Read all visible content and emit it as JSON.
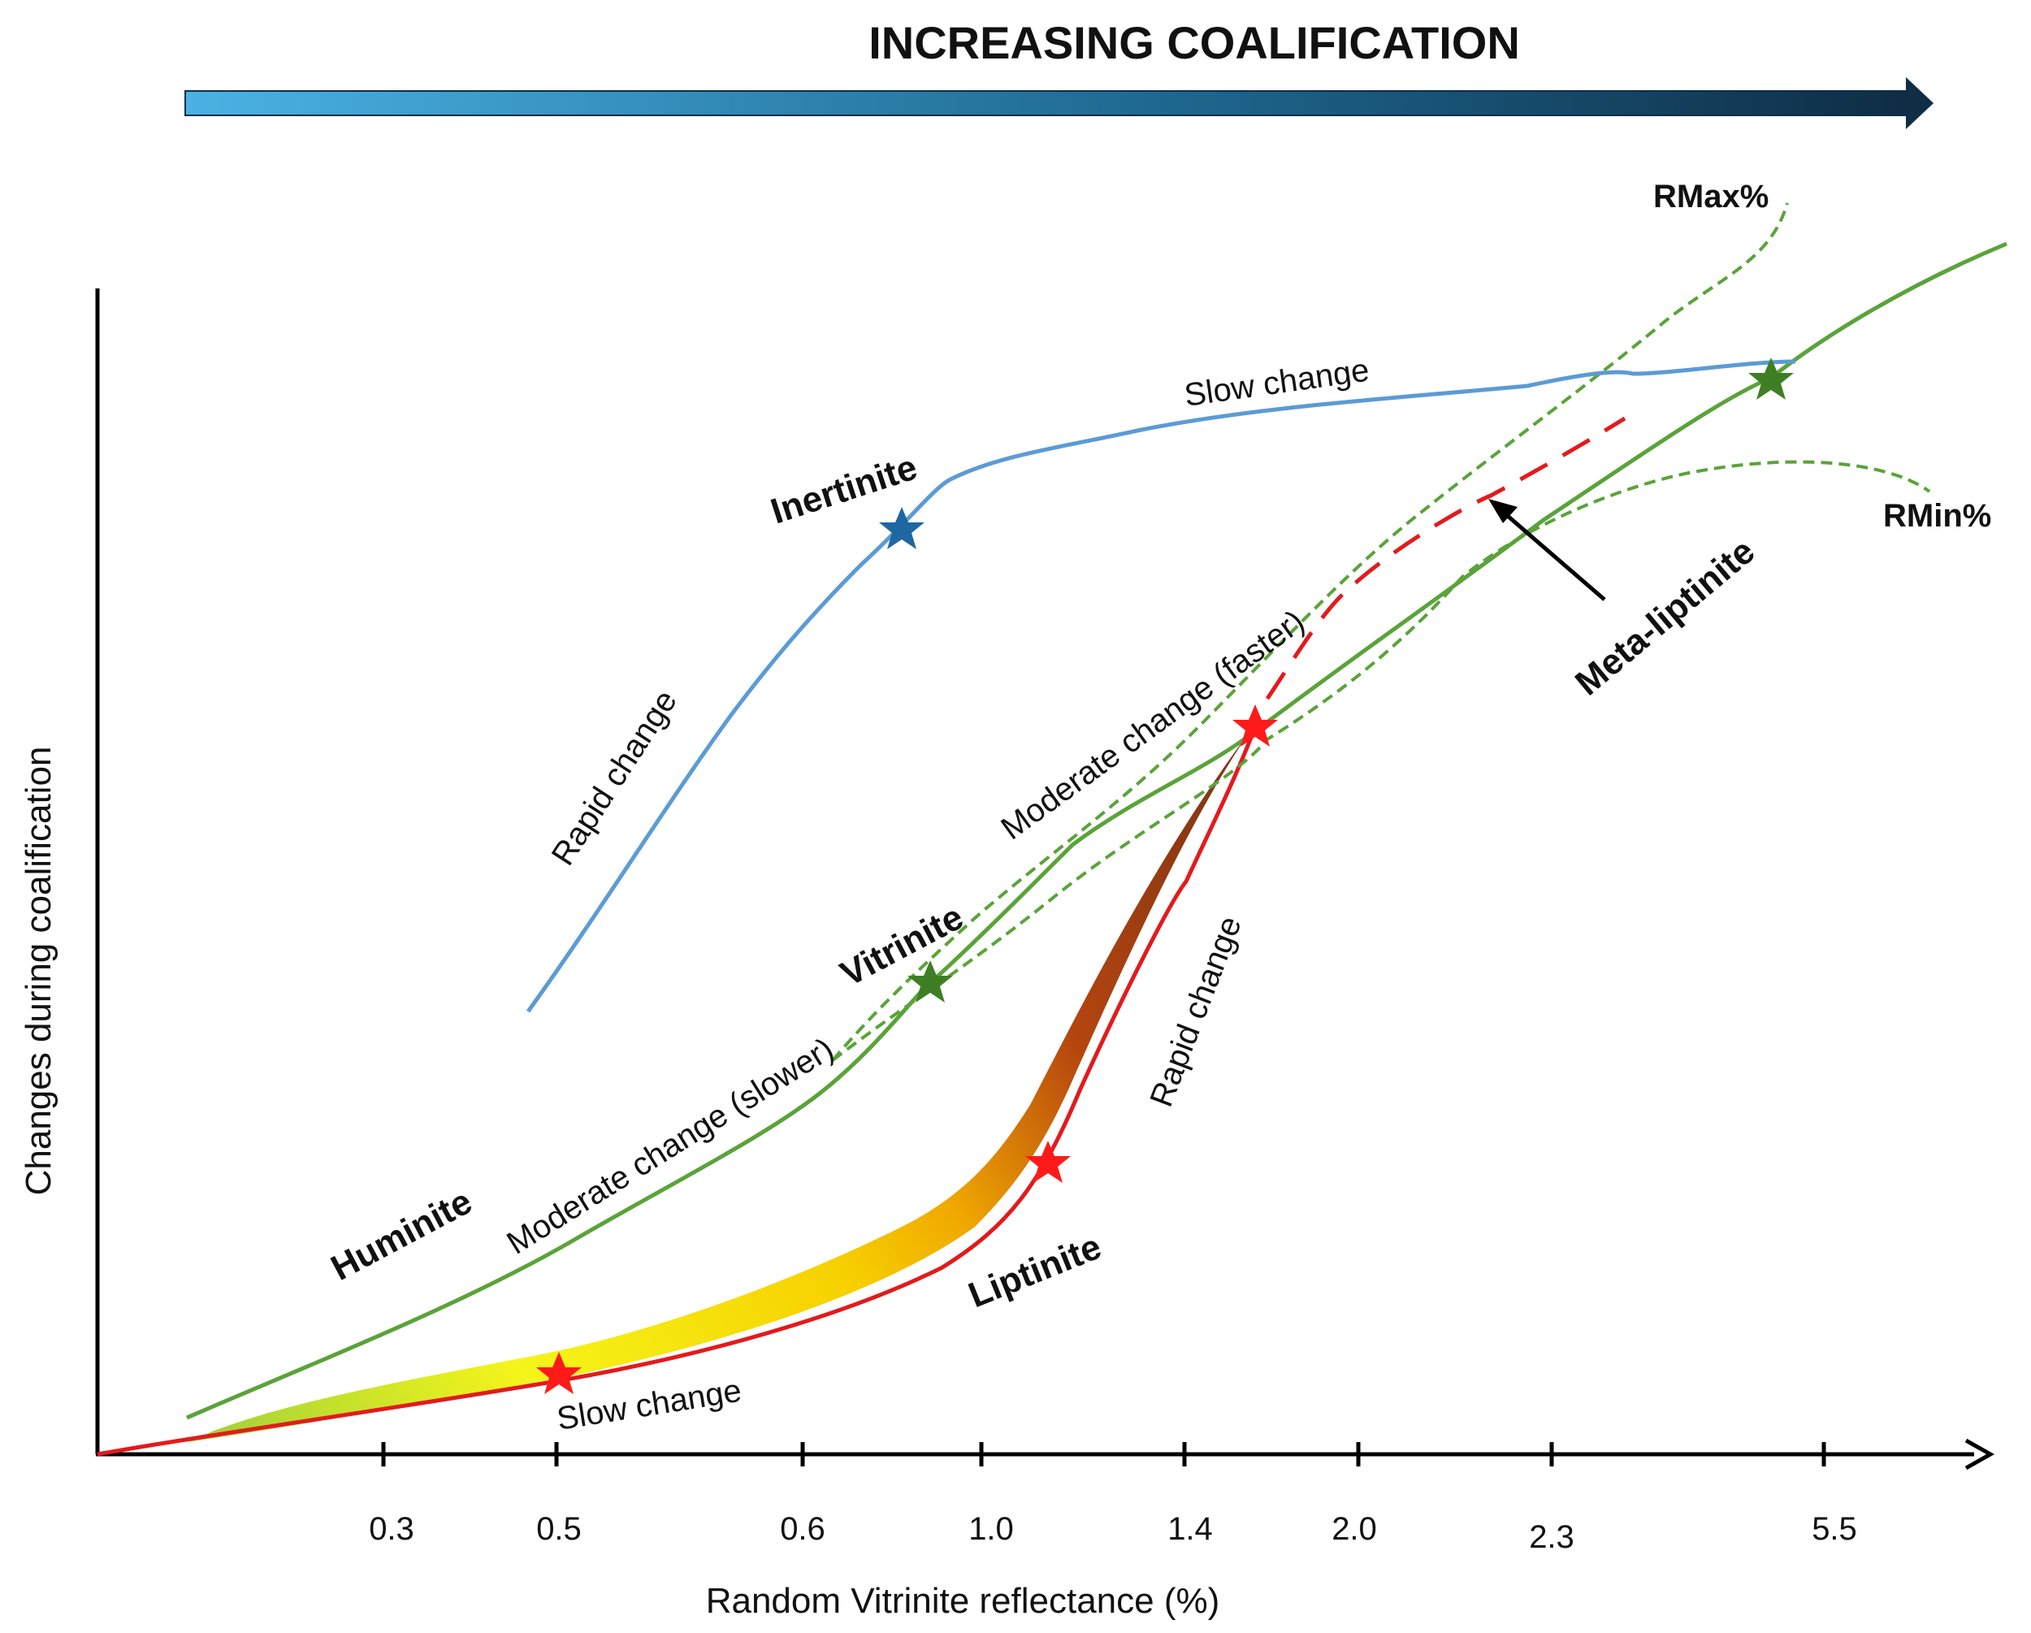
{
  "title": "INCREASING COALIFICATION",
  "axes": {
    "x_label": "Random Vitrinite reflectance (%)",
    "y_label": "Changes during coalification",
    "x_ticks": [
      "0.3",
      "0.5",
      "0.6",
      "1.0",
      "1.4",
      "2.0",
      "2.3",
      "5.5"
    ]
  },
  "materials": {
    "inertinite": "Inertinite",
    "vitrinite": "Vitrinite",
    "huminite": "Huminite",
    "liptinite": "Liptinite",
    "meta_liptinite": "Meta-liptinite"
  },
  "annotations": {
    "rapid_change_inertinite": "Rapid change",
    "slow_change_inertinite": "Slow change",
    "moderate_slower": "Moderate change (slower)",
    "moderate_faster": "Moderate change (faster)",
    "rapid_change_liptinite": "Rapid change",
    "slow_change_liptinite": "Slow change",
    "rmax": "RMax%",
    "rmin": "RMin%"
  },
  "colors": {
    "inertinite": "#5b9bd5",
    "vitrinite": "#5aa339",
    "liptinite": "#e31a1c",
    "arrow_start": "#4bb2e3",
    "arrow_end": "#0f2d45",
    "star_blue": "#1f67a3",
    "star_green": "#3e7f24",
    "star_red": "#ff1a1a"
  }
}
